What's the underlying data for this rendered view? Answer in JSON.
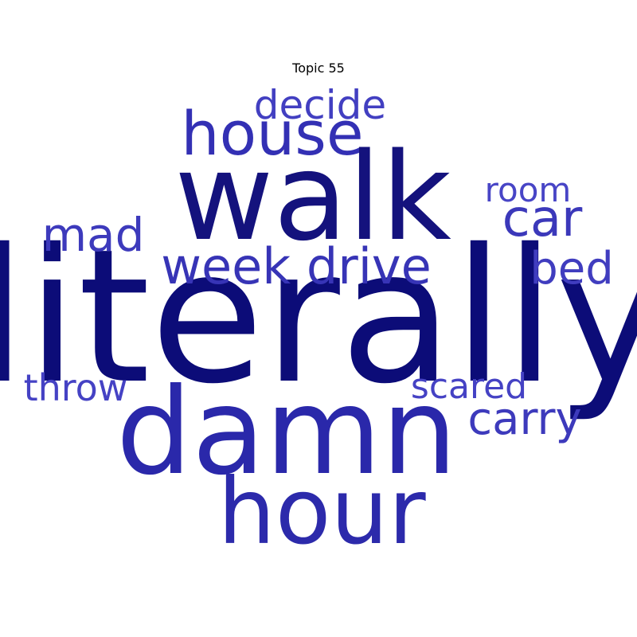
{
  "chart_data": {
    "type": "wordcloud",
    "title": "Topic 55",
    "words": [
      {
        "text": "literally",
        "weight": 1.0,
        "color": "#0c0c78"
      },
      {
        "text": "walk",
        "weight": 0.88,
        "color": "#14127d"
      },
      {
        "text": "damn",
        "weight": 0.84,
        "color": "#2a28aa"
      },
      {
        "text": "hour",
        "weight": 0.66,
        "color": "#2c2aab"
      },
      {
        "text": "house",
        "weight": 0.52,
        "color": "#3330b4"
      },
      {
        "text": "week drive",
        "weight": 0.44,
        "color": "#3734b6"
      },
      {
        "text": "car",
        "weight": 0.42,
        "color": "#3b38ba"
      },
      {
        "text": "carry",
        "weight": 0.38,
        "color": "#3d3abc"
      },
      {
        "text": "mad",
        "weight": 0.36,
        "color": "#3d3abc"
      },
      {
        "text": "bed",
        "weight": 0.34,
        "color": "#403dbf"
      },
      {
        "text": "decide",
        "weight": 0.32,
        "color": "#423fc1"
      },
      {
        "text": "scared",
        "weight": 0.28,
        "color": "#4542c4"
      },
      {
        "text": "throw",
        "weight": 0.28,
        "color": "#4542c4"
      },
      {
        "text": "room",
        "weight": 0.26,
        "color": "#4845c6"
      }
    ]
  }
}
